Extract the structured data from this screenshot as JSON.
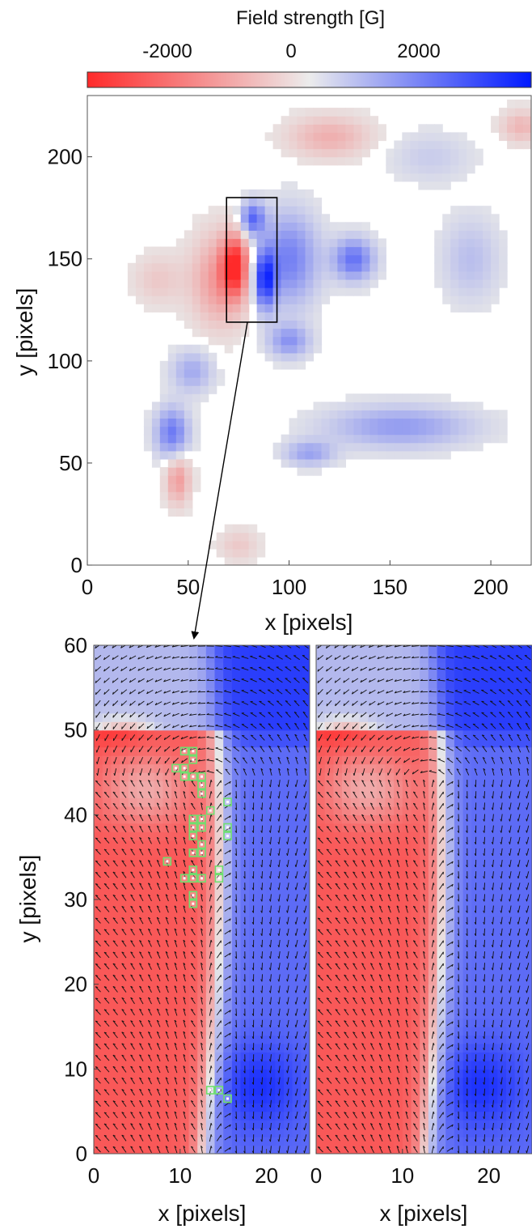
{
  "colorbar": {
    "label": "Field strength [G]",
    "ticks": [
      "-2000",
      "0",
      "2000"
    ],
    "range": [
      -3000,
      3000
    ],
    "low_color": "#ff2a2a",
    "mid_color": "#e8e8e8",
    "high_color": "#0018ff"
  },
  "chart_data": [
    {
      "type": "heatmap",
      "panel": "overview",
      "xlabel": "x [pixels]",
      "ylabel": "y [pixels]",
      "xlim": [
        0,
        220
      ],
      "ylim": [
        0,
        230
      ],
      "xticks": [
        "0",
        "50",
        "100",
        "150",
        "200"
      ],
      "yticks": [
        "0",
        "50",
        "100",
        "150",
        "200"
      ],
      "inset_box": {
        "x": [
          69,
          94
        ],
        "y": [
          119,
          180
        ]
      },
      "features": [
        {
          "name": "central negative polarity",
          "x": 74,
          "y": 145,
          "value": -2600
        },
        {
          "name": "central positive polarity",
          "x": 90,
          "y": 140,
          "value": 2400
        },
        {
          "name": "positive patch east",
          "x": 130,
          "y": 150,
          "value": 1800
        },
        {
          "name": "positive patch west",
          "x": 42,
          "y": 65,
          "value": 1700
        },
        {
          "name": "negative patch south-west",
          "x": 45,
          "y": 42,
          "value": -1200
        },
        {
          "name": "positive band south-east",
          "x": 160,
          "y": 68,
          "value": 1400
        }
      ]
    },
    {
      "type": "heatmap",
      "panel": "zoom-left",
      "xlabel": "x [pixels]",
      "ylabel": "y [pixels]",
      "xlim": [
        0,
        25
      ],
      "ylim": [
        0,
        60
      ],
      "xticks": [
        "0",
        "10",
        "20"
      ],
      "yticks": [
        "0",
        "10",
        "20",
        "30",
        "40",
        "50",
        "60"
      ],
      "overlay": "vector-field",
      "markers": [
        [
          10,
          47
        ],
        [
          11,
          47
        ],
        [
          11,
          46
        ],
        [
          9,
          45
        ],
        [
          10,
          45
        ],
        [
          10,
          44
        ],
        [
          11,
          44
        ],
        [
          12,
          44
        ],
        [
          12,
          43
        ],
        [
          12,
          42
        ],
        [
          13,
          40
        ],
        [
          15,
          41
        ],
        [
          11,
          39
        ],
        [
          12,
          39
        ],
        [
          11,
          38
        ],
        [
          12,
          38
        ],
        [
          15,
          38
        ],
        [
          15,
          37
        ],
        [
          11,
          37
        ],
        [
          12,
          36
        ],
        [
          11,
          35
        ],
        [
          12,
          35
        ],
        [
          8,
          34
        ],
        [
          11,
          33
        ],
        [
          14,
          33
        ],
        [
          10,
          32
        ],
        [
          11,
          32
        ],
        [
          12,
          32
        ],
        [
          14,
          32
        ],
        [
          11,
          30
        ],
        [
          11,
          29
        ],
        [
          13,
          7
        ],
        [
          14,
          7
        ],
        [
          15,
          6
        ]
      ]
    },
    {
      "type": "heatmap",
      "panel": "zoom-right",
      "xlabel": "x [pixels]",
      "xlim": [
        0,
        25
      ],
      "ylim": [
        0,
        60
      ],
      "xticks": [
        "0",
        "10",
        "20"
      ],
      "overlay": "vector-field"
    }
  ]
}
